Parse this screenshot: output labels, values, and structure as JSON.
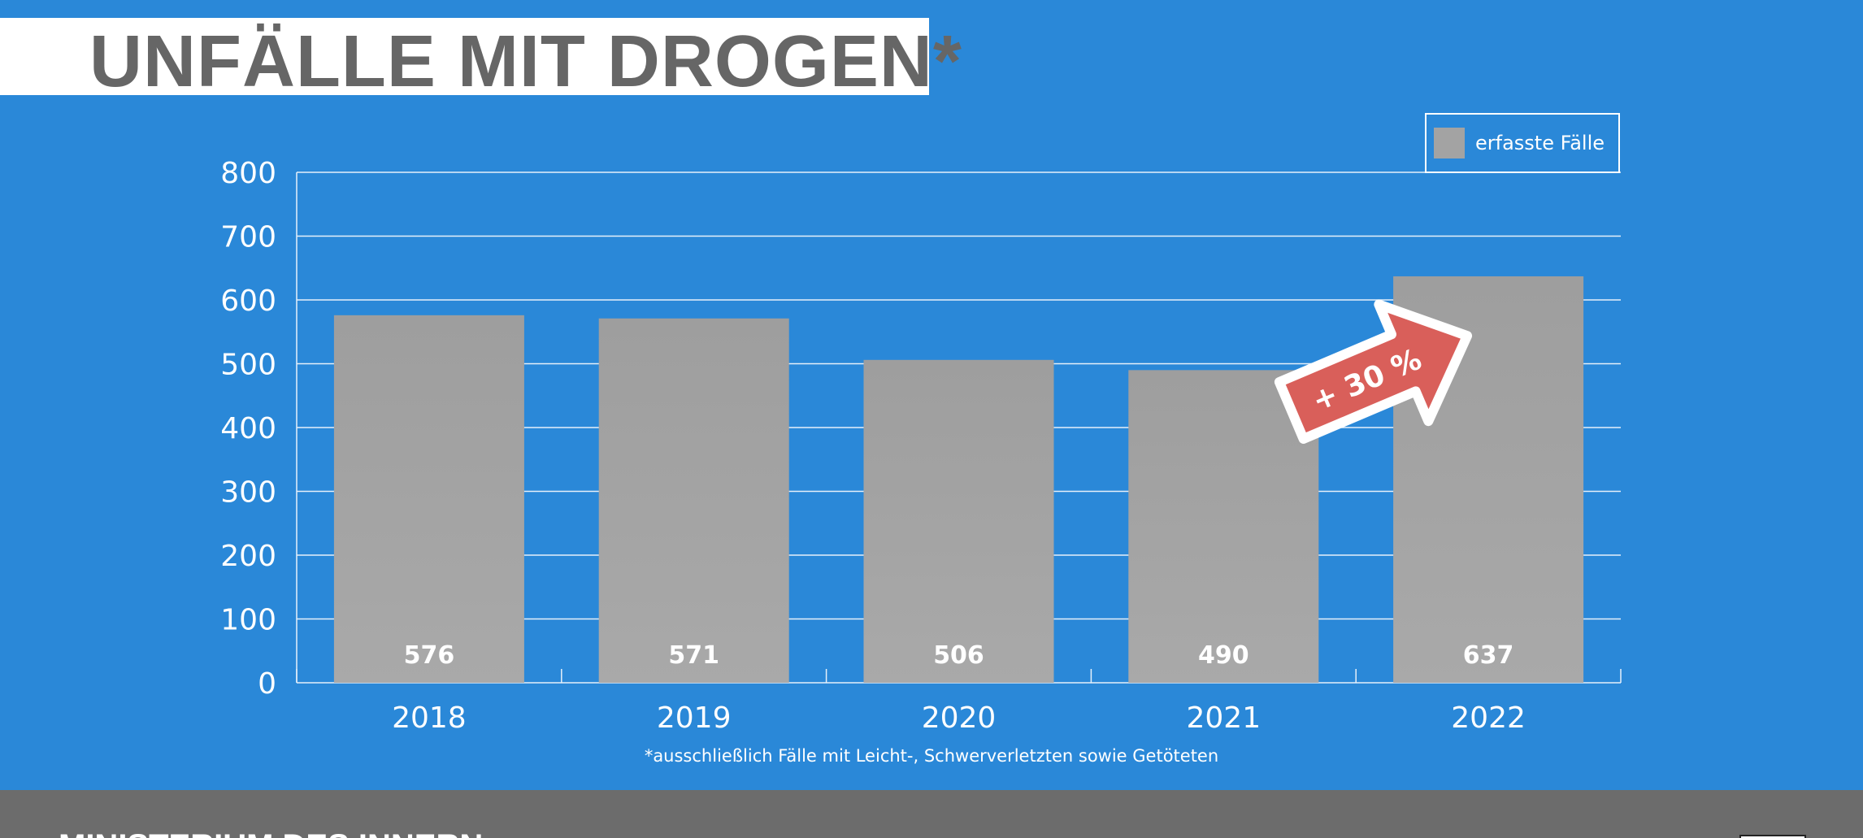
{
  "title": "UNFÄLLE MIT DROGEN*",
  "footnote": "*ausschließlich Fälle mit Leicht-, Schwerverletzten sowie Getöteten",
  "footer": {
    "text": "MINISTERIUM DES INNERN"
  },
  "colors": {
    "background": "#2a88d8",
    "bar": "#a3a3a3",
    "arrow": "#d95f5a",
    "footer": "#6c6c6c",
    "title": "#666666"
  },
  "annotation": {
    "text": "+ 30 %",
    "icon": "arrow-up-right-icon"
  },
  "chart_data": {
    "type": "bar",
    "categories": [
      "2018",
      "2019",
      "2020",
      "2021",
      "2022"
    ],
    "series": [
      {
        "name": "erfasste Fälle",
        "values": [
          576,
          571,
          506,
          490,
          637
        ]
      }
    ],
    "data_labels": [
      "576",
      "571",
      "506",
      "490",
      "637"
    ],
    "ylim": [
      0,
      800
    ],
    "yticks": [
      "0",
      "100",
      "200",
      "300",
      "400",
      "500",
      "600",
      "700",
      "800"
    ],
    "grid": true,
    "legend": "top-right",
    "xlabel": "",
    "ylabel": ""
  }
}
